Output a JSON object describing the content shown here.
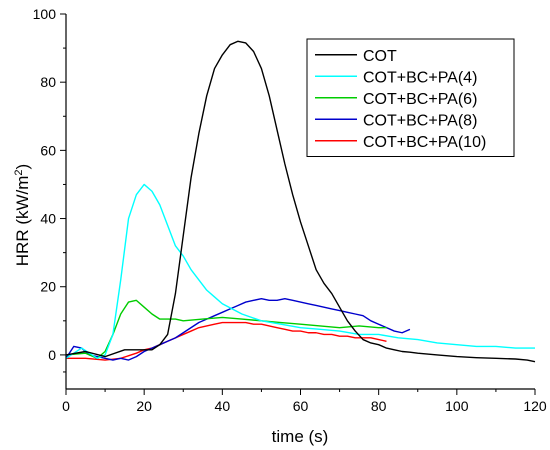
{
  "chart_data": {
    "type": "line",
    "xlabel": "time (s)",
    "ylabel_main": "HRR (kW/m",
    "ylabel_sup": "2",
    "ylabel_close": ")",
    "xlim": [
      0,
      120
    ],
    "ylim": [
      -10,
      100
    ],
    "xticks": [
      0,
      20,
      40,
      60,
      80,
      100,
      120
    ],
    "yticks": [
      0,
      20,
      40,
      60,
      80,
      100
    ],
    "grid": false,
    "legend_position": "top-right",
    "series": [
      {
        "name": "COT",
        "color": "#000000",
        "x": [
          0,
          5,
          10,
          15,
          20,
          22,
          24,
          26,
          28,
          30,
          32,
          34,
          36,
          38,
          40,
          42,
          44,
          46,
          48,
          50,
          52,
          54,
          56,
          58,
          60,
          62,
          64,
          66,
          68,
          70,
          72,
          74,
          76,
          78,
          80,
          82,
          84,
          86,
          88,
          90,
          95,
          100,
          105,
          110,
          115,
          118,
          120
        ],
        "y": [
          0,
          1,
          -0.5,
          1.5,
          1.5,
          1.5,
          3,
          6,
          18,
          35,
          52,
          65,
          76,
          84,
          88,
          91,
          92,
          91.5,
          89,
          84,
          76,
          66,
          56,
          47,
          39,
          32,
          25,
          21,
          18,
          14,
          10,
          7,
          4.5,
          3.5,
          3,
          2,
          1.5,
          1,
          0.8,
          0.5,
          0,
          -0.5,
          -0.8,
          -1,
          -1.2,
          -1.5,
          -2
        ]
      },
      {
        "name": "COT+BC+PA(4)",
        "color": "#00ffff",
        "x": [
          0,
          4,
          8,
          10,
          12,
          14,
          16,
          18,
          20,
          22,
          24,
          26,
          28,
          30,
          32,
          34,
          36,
          38,
          40,
          45,
          50,
          55,
          60,
          65,
          70,
          75,
          80,
          85,
          90,
          95,
          100,
          105,
          110,
          115,
          120
        ],
        "y": [
          -1,
          2,
          -1,
          0,
          6,
          22,
          40,
          47,
          50,
          48,
          44,
          38,
          32,
          29,
          25,
          22,
          19,
          17,
          15,
          12,
          10,
          9,
          8,
          7.5,
          7,
          6,
          6,
          5,
          4.5,
          3.5,
          3,
          2.5,
          2.5,
          2,
          2
        ]
      },
      {
        "name": "COT+BC+PA(6)",
        "color": "#00cc00",
        "x": [
          0,
          5,
          8,
          10,
          12,
          14,
          16,
          18,
          20,
          22,
          24,
          26,
          28,
          30,
          35,
          40,
          45,
          50,
          55,
          60,
          65,
          70,
          75,
          80,
          82
        ],
        "y": [
          0,
          0.5,
          -1,
          1,
          6,
          12,
          15.5,
          16,
          14,
          12,
          10.5,
          10.5,
          10.5,
          10,
          10.5,
          11,
          10.5,
          10,
          9.5,
          9,
          8.5,
          8,
          8.5,
          8,
          8
        ]
      },
      {
        "name": "COT+BC+PA(8)",
        "color": "#0000cc",
        "x": [
          0,
          2,
          4,
          6,
          8,
          10,
          12,
          14,
          16,
          18,
          20,
          22,
          24,
          26,
          28,
          30,
          32,
          34,
          36,
          38,
          40,
          42,
          44,
          46,
          48,
          50,
          52,
          54,
          56,
          58,
          60,
          62,
          64,
          66,
          68,
          70,
          72,
          74,
          76,
          78,
          80,
          82,
          84,
          86,
          88
        ],
        "y": [
          -1,
          2.5,
          2,
          0,
          -0.5,
          -1,
          -1.5,
          -1,
          -1.5,
          -0.5,
          1,
          2,
          3,
          4,
          5,
          6.5,
          8,
          9.5,
          10.5,
          11.5,
          12.5,
          13.5,
          14.5,
          15.5,
          16,
          16.5,
          16,
          16,
          16.5,
          16,
          15.5,
          15,
          14.5,
          14,
          13.5,
          13,
          12.5,
          12,
          11.5,
          10,
          9,
          8,
          7,
          6.5,
          7.5
        ]
      },
      {
        "name": "COT+BC+PA(10)",
        "color": "#ff0000",
        "x": [
          0,
          5,
          10,
          14,
          18,
          20,
          22,
          24,
          26,
          28,
          30,
          32,
          34,
          36,
          38,
          40,
          42,
          44,
          46,
          48,
          50,
          52,
          54,
          56,
          58,
          60,
          62,
          64,
          66,
          68,
          70,
          72,
          74,
          76,
          78,
          80,
          82
        ],
        "y": [
          -1,
          -1,
          -1.5,
          -1,
          0.5,
          1.5,
          2,
          3,
          4,
          5,
          6,
          7,
          8,
          8.5,
          9,
          9.5,
          9.5,
          9.5,
          9.5,
          9,
          9,
          8.5,
          8,
          7.5,
          7,
          7,
          6.5,
          6.5,
          6,
          6,
          5.5,
          5.5,
          5,
          5,
          5,
          4.5,
          4
        ]
      }
    ]
  }
}
